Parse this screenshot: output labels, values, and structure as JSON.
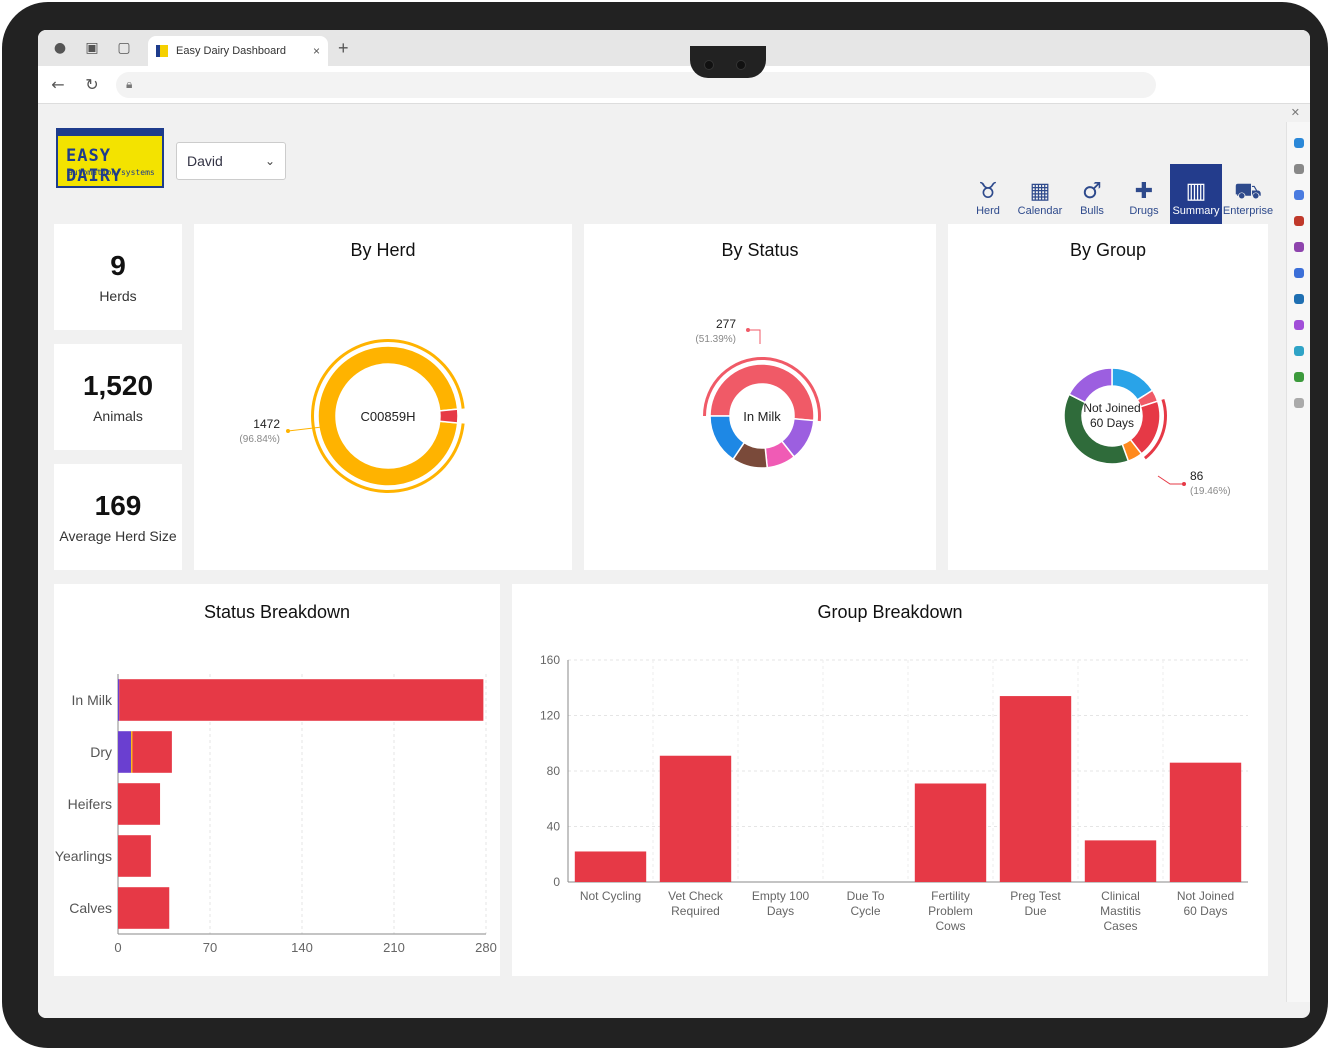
{
  "browser": {
    "tab_title": "Easy Dairy Dashboard",
    "tab_close": "×",
    "new_tab": "+"
  },
  "logo": {
    "line1": "EASY DAIRY",
    "line2": "automation systems"
  },
  "herd_selector": {
    "value": "David"
  },
  "nav": {
    "items": [
      {
        "label": "Herd",
        "icon": "cow-icon"
      },
      {
        "label": "Calendar",
        "icon": "calendar-icon"
      },
      {
        "label": "Bulls",
        "icon": "male-icon"
      },
      {
        "label": "Drugs",
        "icon": "medicine-icon"
      },
      {
        "label": "Summary",
        "icon": "bar-chart-icon",
        "active": true
      },
      {
        "label": "Enterprise",
        "icon": "cattle-icon"
      }
    ]
  },
  "kpis": [
    {
      "value": "9",
      "label": "Herds"
    },
    {
      "value": "1,520",
      "label": "Animals"
    },
    {
      "value": "169",
      "label": "Average Herd Size"
    }
  ],
  "by_herd": {
    "title": "By Herd",
    "center": "C00859H",
    "callout_value": "1472",
    "callout_pct": "(96.84%)",
    "slices": [
      {
        "value": 96.84,
        "color": "#FFB300"
      },
      {
        "value": 3.16,
        "color": "#E63946"
      }
    ]
  },
  "by_status": {
    "title": "By Status",
    "center": "In Milk",
    "callout_value": "277",
    "callout_pct": "(51.39%)",
    "slices": [
      {
        "value": 51.39,
        "color": "#F05A67"
      },
      {
        "value": 13,
        "color": "#9C5FE0"
      },
      {
        "value": 9,
        "color": "#F05BB5"
      },
      {
        "value": 11,
        "color": "#7A4A3A"
      },
      {
        "value": 15.61,
        "color": "#1E88E5"
      }
    ]
  },
  "by_group": {
    "title": "By Group",
    "center_line1": "Not Joined",
    "center_line2": "60 Days",
    "callout_value": "86",
    "callout_pct": "(19.46%)",
    "slices": [
      {
        "value": 16,
        "color": "#29A3E8"
      },
      {
        "value": 4,
        "color": "#F05A67"
      },
      {
        "value": 19.46,
        "color": "#E63946"
      },
      {
        "value": 5,
        "color": "#FF8A1E"
      },
      {
        "value": 38,
        "color": "#2F6B3A"
      },
      {
        "value": 17.54,
        "color": "#9C5FE0"
      }
    ]
  },
  "status_breakdown": {
    "title": "Status Breakdown",
    "chart_data": {
      "type": "bar",
      "orientation": "horizontal",
      "categories": [
        "In Milk",
        "Dry",
        "Heifers",
        "Yearlings",
        "Calves"
      ],
      "series": [
        {
          "values": [
            1,
            10,
            0,
            0,
            0
          ],
          "color": "#6A3FD0"
        },
        {
          "values": [
            0,
            1,
            0,
            0,
            0
          ],
          "color": "#FFB300"
        },
        {
          "values": [
            277,
            30,
            32,
            25,
            39
          ],
          "color": "#E63946"
        }
      ],
      "xticks": [
        "0",
        "70",
        "140",
        "210",
        "280"
      ],
      "xlim": [
        0,
        280
      ]
    }
  },
  "group_breakdown": {
    "title": "Group Breakdown",
    "chart_data": {
      "type": "bar",
      "categories": [
        [
          "Not Cycling"
        ],
        [
          "Vet Check",
          "Required"
        ],
        [
          "Empty 100",
          "Days"
        ],
        [
          "Due To",
          "Cycle"
        ],
        [
          "Fertility",
          "Problem",
          "Cows"
        ],
        [
          "Preg Test",
          "Due"
        ],
        [
          "Clinical",
          "Mastitis",
          "Cases"
        ],
        [
          "Not Joined",
          "60 Days"
        ]
      ],
      "values": [
        22,
        91,
        0,
        0,
        71,
        134,
        30,
        86
      ],
      "color": "#E63946",
      "yticks": [
        "0",
        "40",
        "80",
        "120",
        "160"
      ],
      "ylim": [
        0,
        160
      ]
    }
  }
}
